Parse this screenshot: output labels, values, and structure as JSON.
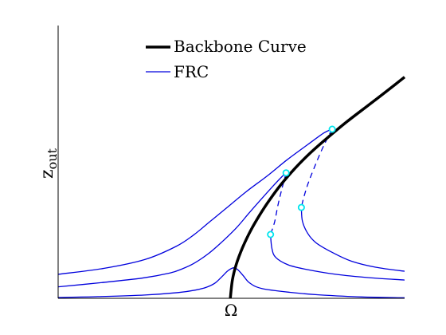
{
  "chart_data": {
    "type": "line",
    "title": "",
    "xlabel": "Ω",
    "ylabel_main": "z",
    "ylabel_sub": "out",
    "xlim": [
      0,
      1
    ],
    "ylim": [
      0,
      1
    ],
    "x_ticks": [],
    "y_ticks": [],
    "grid": false,
    "legend_position": "top-center",
    "colors": {
      "backbone": "#000000",
      "frc": "#0000dd",
      "bifurcation_marker": "#00e5ee"
    },
    "series": [
      {
        "name": "Backbone Curve",
        "style": "thick-solid",
        "points": [
          [
            0.497,
            0.0
          ],
          [
            0.503,
            0.067
          ],
          [
            0.514,
            0.124
          ],
          [
            0.532,
            0.185
          ],
          [
            0.556,
            0.249
          ],
          [
            0.582,
            0.306
          ],
          [
            0.611,
            0.362
          ],
          [
            0.645,
            0.42
          ],
          [
            0.684,
            0.477
          ],
          [
            0.727,
            0.532
          ],
          [
            0.777,
            0.588
          ],
          [
            0.834,
            0.648
          ],
          [
            0.904,
            0.716
          ],
          [
            0.975,
            0.786
          ],
          [
            1.0,
            0.811
          ]
        ]
      },
      {
        "name": "FRC",
        "style": "solid",
        "points": [
          [
            0.0,
            0.003
          ],
          [
            0.115,
            0.006
          ],
          [
            0.25,
            0.012
          ],
          [
            0.346,
            0.021
          ],
          [
            0.396,
            0.03
          ],
          [
            0.429,
            0.041
          ],
          [
            0.453,
            0.056
          ],
          [
            0.474,
            0.081
          ],
          [
            0.49,
            0.101
          ],
          [
            0.507,
            0.112
          ],
          [
            0.519,
            0.104
          ],
          [
            0.535,
            0.082
          ],
          [
            0.553,
            0.056
          ],
          [
            0.588,
            0.036
          ],
          [
            0.669,
            0.022
          ],
          [
            0.751,
            0.013
          ],
          [
            0.876,
            0.005
          ],
          [
            1.0,
            0.002
          ]
        ]
      },
      {
        "name": "",
        "style": "solid",
        "points": [
          [
            0.0,
            0.042
          ],
          [
            0.121,
            0.057
          ],
          [
            0.242,
            0.074
          ],
          [
            0.323,
            0.093
          ],
          [
            0.358,
            0.108
          ],
          [
            0.392,
            0.128
          ],
          [
            0.434,
            0.164
          ],
          [
            0.473,
            0.207
          ],
          [
            0.515,
            0.259
          ],
          [
            0.55,
            0.311
          ],
          [
            0.588,
            0.366
          ],
          [
            0.617,
            0.407
          ],
          [
            0.646,
            0.446
          ],
          [
            0.658,
            0.46
          ]
        ]
      },
      {
        "name": "",
        "style": "dashed",
        "points": [
          [
            0.658,
            0.46
          ],
          [
            0.646,
            0.402
          ],
          [
            0.634,
            0.339
          ],
          [
            0.625,
            0.281
          ],
          [
            0.613,
            0.234
          ]
        ]
      },
      {
        "name": "",
        "style": "solid",
        "points": [
          [
            0.613,
            0.234
          ],
          [
            0.617,
            0.183
          ],
          [
            0.628,
            0.15
          ],
          [
            0.663,
            0.123
          ],
          [
            0.709,
            0.108
          ],
          [
            0.801,
            0.088
          ],
          [
            0.904,
            0.075
          ],
          [
            1.0,
            0.067
          ]
        ]
      },
      {
        "name": "",
        "style": "solid",
        "points": [
          [
            0.0,
            0.088
          ],
          [
            0.133,
            0.11
          ],
          [
            0.25,
            0.142
          ],
          [
            0.34,
            0.19
          ],
          [
            0.392,
            0.233
          ],
          [
            0.438,
            0.281
          ],
          [
            0.486,
            0.331
          ],
          [
            0.542,
            0.39
          ],
          [
            0.609,
            0.454
          ],
          [
            0.661,
            0.508
          ],
          [
            0.721,
            0.564
          ],
          [
            0.767,
            0.606
          ],
          [
            0.791,
            0.62
          ]
        ]
      },
      {
        "name": "",
        "style": "dashed",
        "points": [
          [
            0.791,
            0.62
          ],
          [
            0.782,
            0.599
          ],
          [
            0.761,
            0.544
          ],
          [
            0.738,
            0.475
          ],
          [
            0.721,
            0.419
          ],
          [
            0.709,
            0.37
          ],
          [
            0.702,
            0.333
          ]
        ]
      },
      {
        "name": "",
        "style": "solid",
        "points": [
          [
            0.702,
            0.333
          ],
          [
            0.705,
            0.283
          ],
          [
            0.72,
            0.239
          ],
          [
            0.744,
            0.204
          ],
          [
            0.79,
            0.169
          ],
          [
            0.847,
            0.136
          ],
          [
            0.916,
            0.114
          ],
          [
            1.0,
            0.099
          ]
        ]
      }
    ],
    "bifurcation_points": [
      [
        0.658,
        0.46
      ],
      [
        0.613,
        0.234
      ],
      [
        0.791,
        0.62
      ],
      [
        0.702,
        0.333
      ]
    ]
  }
}
